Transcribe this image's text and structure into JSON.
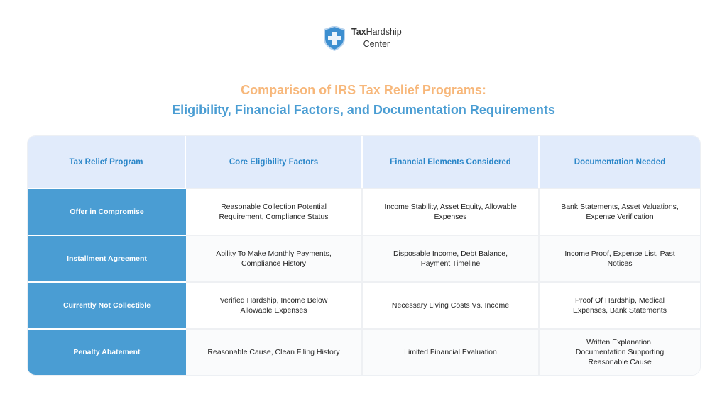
{
  "logo": {
    "brand_bold": "Tax",
    "brand_rest": "Hardship",
    "line2": "Center"
  },
  "title": {
    "line1": "Comparison of IRS Tax Relief Programs:",
    "line2": "Eligibility, Financial Factors, and Documentation Requirements"
  },
  "colors": {
    "accent_orange": "#f7b77a",
    "accent_blue": "#4a9dd3",
    "header_bg": "#e1ebfb"
  },
  "table": {
    "headers": [
      "Tax Relief Program",
      "Core Eligibility Factors",
      "Financial Elements Considered",
      "Documentation Needed"
    ],
    "rows": [
      [
        "Offer in Compromise",
        "Reasonable Collection Potential Requirement, Compliance Status",
        "Income Stability, Asset Equity, Allowable Expenses",
        "Bank Statements, Asset Valuations, Expense Verification"
      ],
      [
        "Installment Agreement",
        "Ability To Make Monthly Payments, Compliance History",
        "Disposable Income, Debt Balance, Payment Timeline",
        "Income Proof, Expense List, Past Notices"
      ],
      [
        "Currently Not Collectible",
        "Verified Hardship, Income Below Allowable Expenses",
        "Necessary Living Costs Vs. Income",
        "Proof Of Hardship, Medical Expenses, Bank Statements"
      ],
      [
        "Penalty Abatement",
        "Reasonable Cause, Clean Filing History",
        "Limited Financial Evaluation",
        "Written Explanation, Documentation Supporting Reasonable Cause"
      ]
    ]
  }
}
